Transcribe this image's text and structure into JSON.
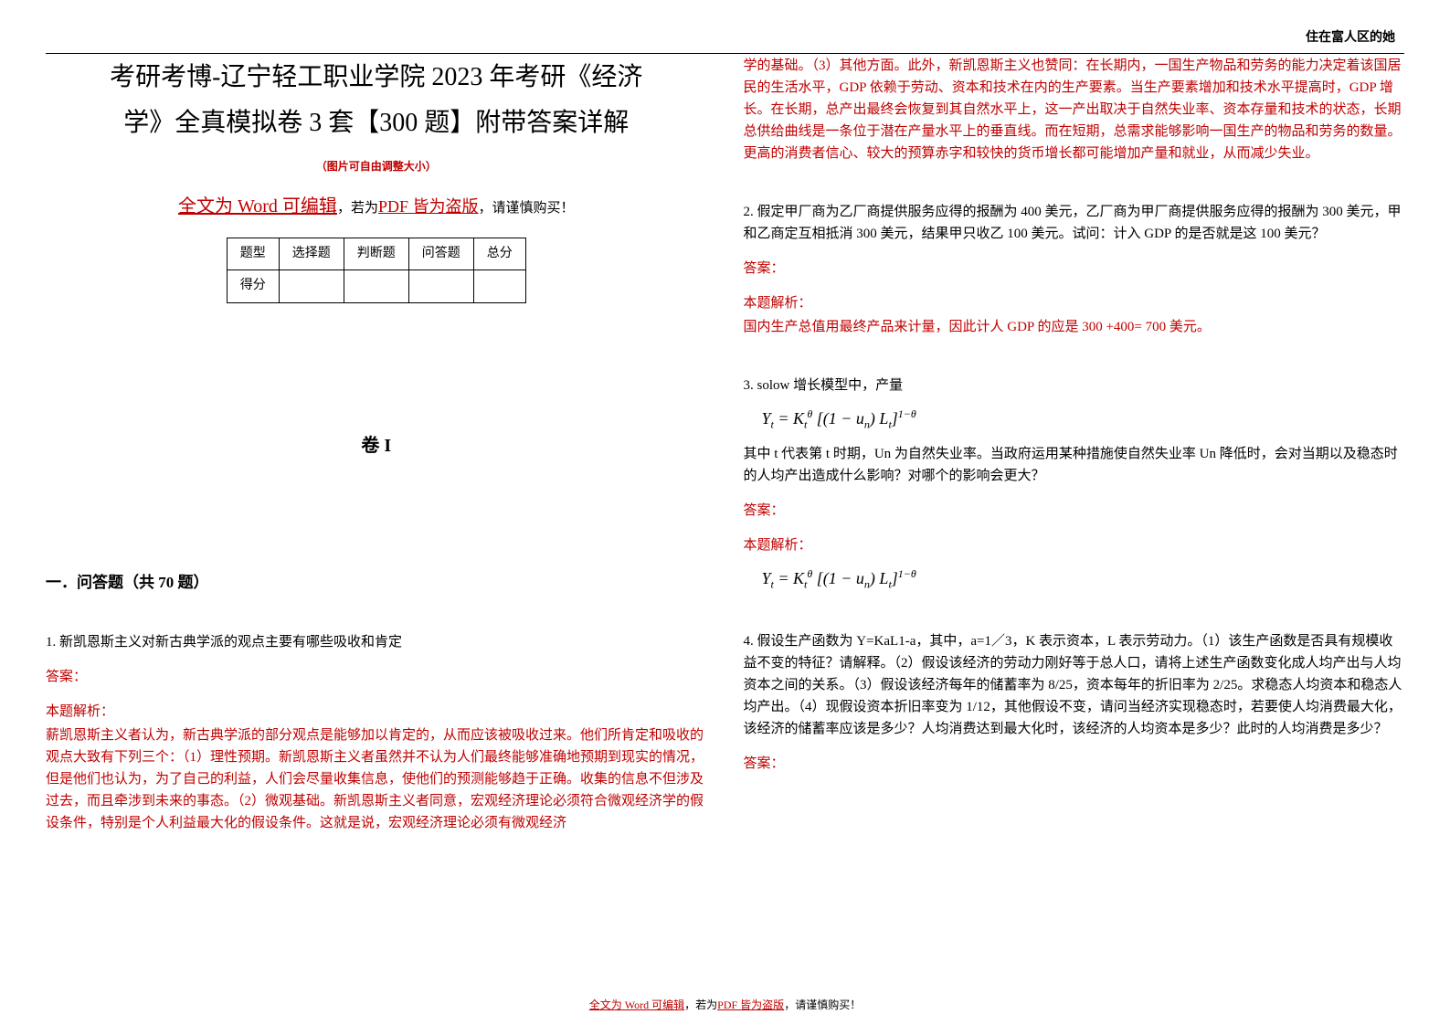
{
  "header": {
    "corner_text": "住在富人区的她"
  },
  "title_line1": "考研考博-辽宁轻工职业学院 2023 年考研《经济",
  "title_line2": "学》全真模拟卷 3 套【300 题】附带答案详解",
  "img_note": "（图片可自由调整大小）",
  "word_note": {
    "prefix": "全文为 Word 可编辑",
    "mid": "，若为",
    "pdf": "PDF 皆为盗版",
    "suffix": "，请谨慎购买！"
  },
  "score_table": {
    "headers": [
      "题型",
      "选择题",
      "判断题",
      "问答题",
      "总分"
    ],
    "row_label": "得分"
  },
  "juan_label": "卷 I",
  "section1": "一．问答题（共 70 题）",
  "q1": {
    "num_text": "1. 新凯恩斯主义对新古典学派的观点主要有哪些吸收和肯定",
    "ans_label": "答案：",
    "explain_label": "本题解析：",
    "explain_body_col1": "薪凯恩斯主义者认为，新古典学派的部分观点是能够加以肯定的，从而应该被吸收过来。他们所肯定和吸收的观点大致有下列三个：（1）理性预期。新凯恩斯主义者虽然并不认为人们最终能够准确地预期到现实的情况，但是他们也认为，为了自己的利益，人们会尽量收集信息，使他们的预测能够趋于正确。收集的信息不但涉及过去，而且牵涉到未来的事态。（2）微观基础。新凯恩斯主义者同意，宏观经济理论必须符合微观经济学的假设条件，特别是个人利益最大化的假设条件。这就是说，宏观经济理论必须有微观经济",
    "explain_body_col2": "学的基础。（3）其他方面。此外，新凯恩斯主义也赞同：在长期内，一国生产物品和劳务的能力决定着该国居民的生活水平，GDP 依赖于劳动、资本和技术在内的生产要素。当生产要素增加和技术水平提高时，GDP 增长。在长期，总产出最终会恢复到其自然水平上，这一产出取决于自然失业率、资本存量和技术的状态，长期总供给曲线是一条位于潜在产量水平上的垂直线。而在短期，总需求能够影响一国生产的物品和劳务的数量。更高的消费者信心、较大的预算赤字和较快的货币增长都可能增加产量和就业，从而减少失业。"
  },
  "q2": {
    "num_text": "2. 假定甲厂商为乙厂商提供服务应得的报酬为 400 美元，乙厂商为甲厂商提供服务应得的报酬为 300 美元，甲和乙商定互相抵消 300 美元，结果甲只收乙 100 美元。试问：计入 GDP 的是否就是这 100 美元？",
    "ans_label": "答案：",
    "explain_label": "本题解析：",
    "explain_body": "国内生产总值用最终产品来计量，因此计人 GDP 的应是 300 +400= 700 美元。"
  },
  "q3": {
    "num_text": "3. solow 增长模型中，产量",
    "formula1": "Y_t = K_t^θ [(1 − u_n) L_t]^{1−θ}",
    "body": "其中 t 代表第 t 时期，Un 为自然失业率。当政府运用某种措施使自然失业率 Un 降低时，会对当期以及稳态时的人均产出造成什么影响？对哪个的影响会更大？",
    "ans_label": "答案：",
    "explain_label": "本题解析：",
    "formula2": "Y_t = K_t^θ [(1 − u_n) L_t]^{1−θ}"
  },
  "q4": {
    "num_text": "4. 假设生产函数为 Y=KaL1-a，其中，a=1／3，K 表示资本，L 表示劳动力。（1）该生产函数是否具有规模收益不变的特征？请解释。（2）假设该经济的劳动力刚好等于总人口，请将上述生产函数变化成人均产出与人均资本之间的关系。（3）假设该经济每年的储蓄率为 8/25，资本每年的折旧率为 2/25。求稳态人均资本和稳态人均产出。（4）现假设资本折旧率变为 1/12，其他假设不变，请问当经济实现稳态时，若要使人均消费最大化，该经济的储蓄率应该是多少？人均消费达到最大化时，该经济的人均资本是多少？此时的人均消费是多少？",
    "ans_label": "答案："
  },
  "footer": {
    "p1": "全文为 Word 可编辑",
    "p2": "，若为",
    "p3": "PDF 皆为盗版",
    "p4": "，请谨慎购买！"
  },
  "colors": {
    "text": "#000000",
    "accent": "#c00000",
    "background": "#ffffff"
  }
}
